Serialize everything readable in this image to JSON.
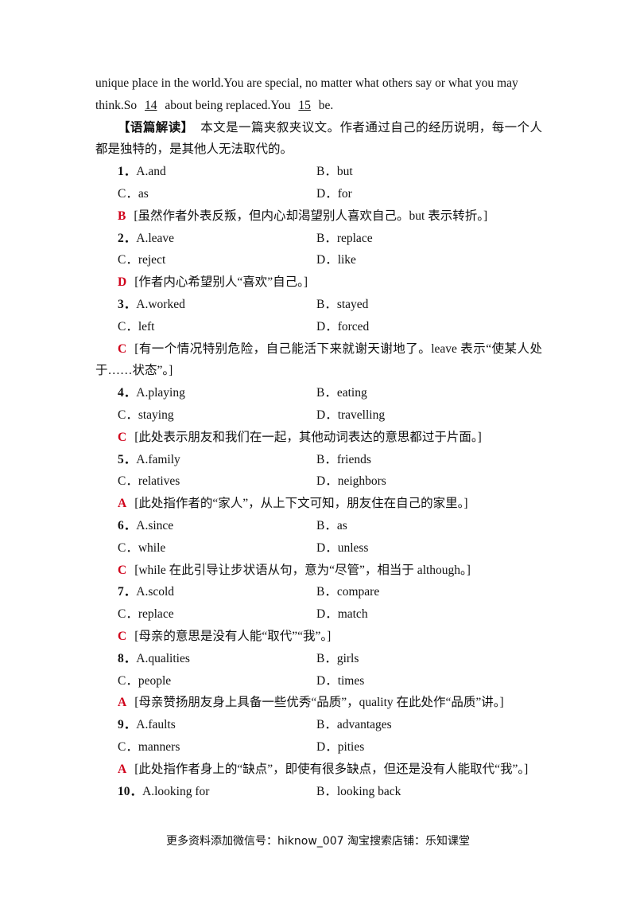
{
  "intro": {
    "line1": "unique place in the world.You are special, no matter what others say or what you may",
    "line2_a": "think.So",
    "blank_14": "14",
    "line2_b": "about being replaced.You",
    "blank_15": "15",
    "line2_c": "be."
  },
  "analysis": {
    "label": "【语篇解读】",
    "text": "本文是一篇夹叙夹议文。作者通过自己的经历说明，每一个人都是独特的，是其他人无法取代的。"
  },
  "questions": [
    {
      "number": "1．",
      "options": [
        "A.and",
        "B．but",
        "C．as",
        "D．for"
      ],
      "answer": "B",
      "explanation": "[虽然作者外表反叛，但内心却渴望别人喜欢自己。but 表示转折。]"
    },
    {
      "number": "2．",
      "options": [
        "A.leave",
        "B．replace",
        "C．reject",
        "D．like"
      ],
      "answer": "D",
      "explanation": "[作者内心希望别人“喜欢”自己。]"
    },
    {
      "number": "3．",
      "options": [
        "A.worked",
        "B．stayed",
        "C．left",
        "D．forced"
      ],
      "answer": "C",
      "explanation": "[有一个情况特别危险，自己能活下来就谢天谢地了。leave 表示“使某人处于……状态”。]"
    },
    {
      "number": "4．",
      "options": [
        "A.playing",
        "B．eating",
        "C．staying",
        "D．travelling"
      ],
      "answer": "C",
      "explanation": "[此处表示朋友和我们在一起，其他动词表达的意思都过于片面。]"
    },
    {
      "number": "5．",
      "options": [
        "A.family",
        "B．friends",
        "C．relatives",
        "D．neighbors"
      ],
      "answer": "A",
      "explanation": "[此处指作者的“家人”，从上下文可知，朋友住在自己的家里。]"
    },
    {
      "number": "6．",
      "options": [
        "A.since",
        "B．as",
        "C．while",
        "D．unless"
      ],
      "answer": "C",
      "explanation": "[while 在此引导让步状语从句，意为“尽管”，相当于 although。]"
    },
    {
      "number": "7．",
      "options": [
        "A.scold",
        "B．compare",
        "C．replace",
        "D．match"
      ],
      "answer": "C",
      "explanation": "[母亲的意思是没有人能“取代”“我”。]"
    },
    {
      "number": "8．",
      "options": [
        "A.qualities",
        "B．girls",
        "C．people",
        "D．times"
      ],
      "answer": "A",
      "explanation": "[母亲赞扬朋友身上具备一些优秀“品质”，quality 在此处作“品质”讲。]"
    },
    {
      "number": "9．",
      "options": [
        "A.faults",
        "B．advantages",
        "C．manners",
        "D．pities"
      ],
      "answer": "A",
      "explanation": "[此处指作者身上的“缺点”，即使有很多缺点，但还是没有人能取代“我”。]"
    },
    {
      "number": "10．",
      "options": [
        "A.looking for",
        "B．looking back"
      ]
    }
  ],
  "footer": "更多资料添加微信号：hiknow_007 淘宝搜索店铺：乐知课堂"
}
